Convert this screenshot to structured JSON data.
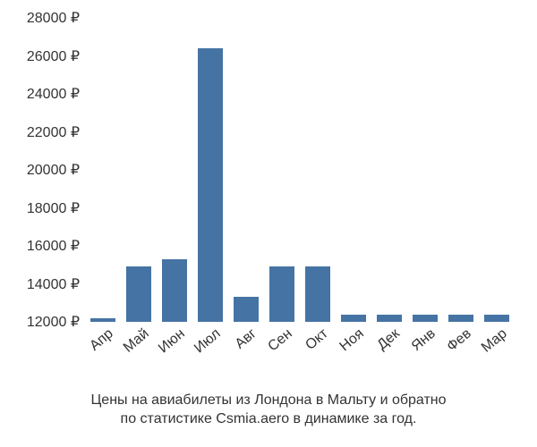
{
  "chart": {
    "type": "bar",
    "categories": [
      "Апр",
      "Май",
      "Июн",
      "Июл",
      "Авг",
      "Сен",
      "Окт",
      "Ноя",
      "Дек",
      "Янв",
      "Фев",
      "Мар"
    ],
    "values": [
      12200,
      14900,
      15300,
      26400,
      13300,
      14900,
      14900,
      12400,
      12400,
      12400,
      12400,
      12400
    ],
    "bar_color": "#4574a4",
    "background_color": "#ffffff",
    "text_color": "#333333",
    "y_min": 12000,
    "y_max": 28000,
    "y_tick_step": 2000,
    "y_tick_suffix": " ₽",
    "bar_width_ratio": 0.7,
    "label_fontsize": 16,
    "x_label_rotation_deg": -40
  },
  "caption": {
    "line1": "Цены на авиабилеты из Лондона в Мальту и обратно",
    "line2": "по статистике Csmia.aero в динамике за год."
  }
}
